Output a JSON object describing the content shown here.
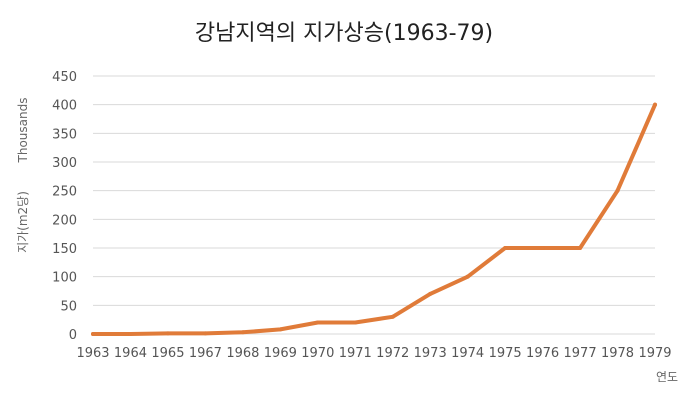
{
  "chart_data": {
    "type": "line",
    "title": "강남지역의 지가상승(1963-79)",
    "xlabel": "연도",
    "ylabel": "지가(m2당)",
    "y_units": "Thousands",
    "categories": [
      "1963",
      "1964",
      "1965",
      "1967",
      "1968",
      "1969",
      "1970",
      "1971",
      "1972",
      "1973",
      "1974",
      "1975",
      "1976",
      "1977",
      "1978",
      "1979"
    ],
    "series": [
      {
        "values": [
          0,
          0,
          1,
          1,
          3,
          8,
          20,
          20,
          30,
          70,
          100,
          150,
          150,
          150,
          250,
          400
        ]
      }
    ],
    "ylim": [
      0,
      450
    ],
    "yticks": [
      0,
      50,
      100,
      150,
      200,
      250,
      300,
      350,
      400,
      450
    ],
    "grid": true,
    "legend": "none",
    "colors": {
      "line": "#e07b39",
      "grid": "#d9d9d9",
      "text": "#555555"
    }
  }
}
